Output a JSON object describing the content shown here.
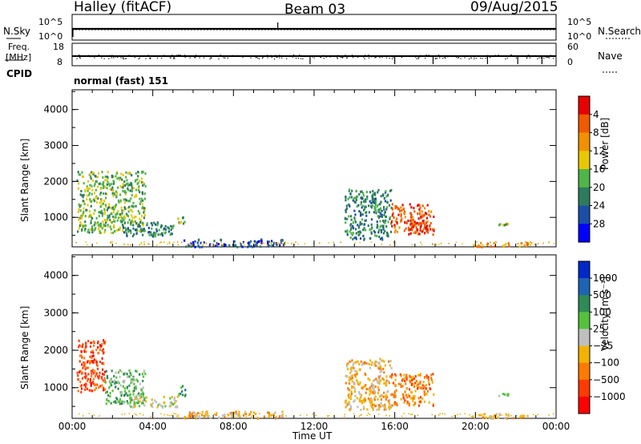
{
  "header": {
    "station": "Halley (fitACF)",
    "beam": "Beam 03",
    "date": "09/Aug/2015"
  },
  "noise_panel": {
    "left_label": "N.Sky",
    "left_ticks": [
      "10^5",
      "10^0"
    ],
    "right_label": "N.Search",
    "right_ticks": [
      "10^5",
      "10^0"
    ]
  },
  "freq_panel": {
    "left_label_1": "Freq.",
    "left_label_2": "[MHz]",
    "left_ticks": [
      "18",
      "8"
    ],
    "right_label": "Nave",
    "right_ticks": [
      "60",
      "0"
    ],
    "cpid_label": "CPID",
    "cpid_value": "normal (fast) 151"
  },
  "colors": {
    "scale": [
      "#0000ff",
      "#1c4ea8",
      "#2d7b5e",
      "#4fb548",
      "#e8c800",
      "#f29000",
      "#f05a00",
      "#e80000"
    ],
    "velocity_scale": [
      "#ff0000",
      "#ff3a00",
      "#ff7a00",
      "#f2b200",
      "#bfbfbf",
      "#55c13a",
      "#2e8b57",
      "#1e64b4",
      "#0028c8"
    ]
  },
  "chart_data": [
    {
      "type": "heatmap",
      "title": "",
      "ylabel": "Slant Range [km]",
      "ylim": [
        180,
        4550
      ],
      "y_ticks": [
        "1000",
        "2000",
        "3000",
        "4000"
      ],
      "x_ticks": [
        "00:00",
        "04:00",
        "08:00",
        "12:00",
        "16:00",
        "20:00",
        "00:00"
      ],
      "colorbar": {
        "label": "Power [dB]",
        "ticks": [
          "4",
          "8",
          "12",
          "16",
          "20",
          "24",
          "28"
        ],
        "range": [
          0,
          32
        ]
      },
      "patches": [
        {
          "t0": 0.2,
          "t1": 3.6,
          "r0": 600,
          "r1": 2300,
          "level": 3
        },
        {
          "t0": 2.5,
          "t1": 5.0,
          "r0": 500,
          "r1": 900,
          "level": 2
        },
        {
          "t0": 5.2,
          "t1": 5.6,
          "r0": 800,
          "r1": 1100,
          "level": 3
        },
        {
          "t0": 5.5,
          "t1": 10.5,
          "r0": 200,
          "r1": 420,
          "level": 1
        },
        {
          "t0": 13.5,
          "t1": 15.8,
          "r0": 400,
          "r1": 1800,
          "level": 2
        },
        {
          "t0": 15.8,
          "t1": 17.9,
          "r0": 550,
          "r1": 1400,
          "level": 6
        },
        {
          "t0": 16.6,
          "t1": 17.6,
          "r0": 550,
          "r1": 900,
          "level": 7
        },
        {
          "t0": 19.8,
          "t1": 22.6,
          "r0": 200,
          "r1": 330,
          "level": 5
        },
        {
          "t0": 21.1,
          "t1": 21.6,
          "r0": 800,
          "r1": 870,
          "level": 3
        }
      ]
    },
    {
      "type": "heatmap",
      "title": "",
      "ylabel": "Slant Range [km]",
      "xlabel": "Time UT",
      "ylim": [
        180,
        4550
      ],
      "y_ticks": [
        "1000",
        "2000",
        "3000",
        "4000"
      ],
      "x_ticks": [
        "00:00",
        "04:00",
        "08:00",
        "12:00",
        "16:00",
        "20:00",
        "00:00"
      ],
      "colorbar": {
        "label": "Velocity [m s⁻¹]",
        "ticks": [
          "1000",
          "500",
          "100",
          "25",
          "−25",
          "−100",
          "−500",
          "−1000"
        ]
      },
      "patches": [
        {
          "t0": 0.2,
          "t1": 1.6,
          "r0": 900,
          "r1": 2300,
          "level": 1
        },
        {
          "t0": 1.6,
          "t1": 3.6,
          "r0": 600,
          "r1": 1500,
          "level": 5
        },
        {
          "t0": 2.8,
          "t1": 5.2,
          "r0": 500,
          "r1": 800,
          "level": 4
        },
        {
          "t0": 5.2,
          "t1": 5.6,
          "r0": 800,
          "r1": 1100,
          "level": 6
        },
        {
          "t0": 5.5,
          "t1": 10.5,
          "r0": 200,
          "r1": 400,
          "level": 3
        },
        {
          "t0": 13.5,
          "t1": 15.8,
          "r0": 400,
          "r1": 1800,
          "level": 3
        },
        {
          "t0": 15.8,
          "t1": 17.9,
          "r0": 550,
          "r1": 1400,
          "level": 2
        },
        {
          "t0": 19.8,
          "t1": 22.6,
          "r0": 200,
          "r1": 330,
          "level": 3
        },
        {
          "t0": 21.1,
          "t1": 21.6,
          "r0": 800,
          "r1": 870,
          "level": 4
        }
      ]
    }
  ]
}
